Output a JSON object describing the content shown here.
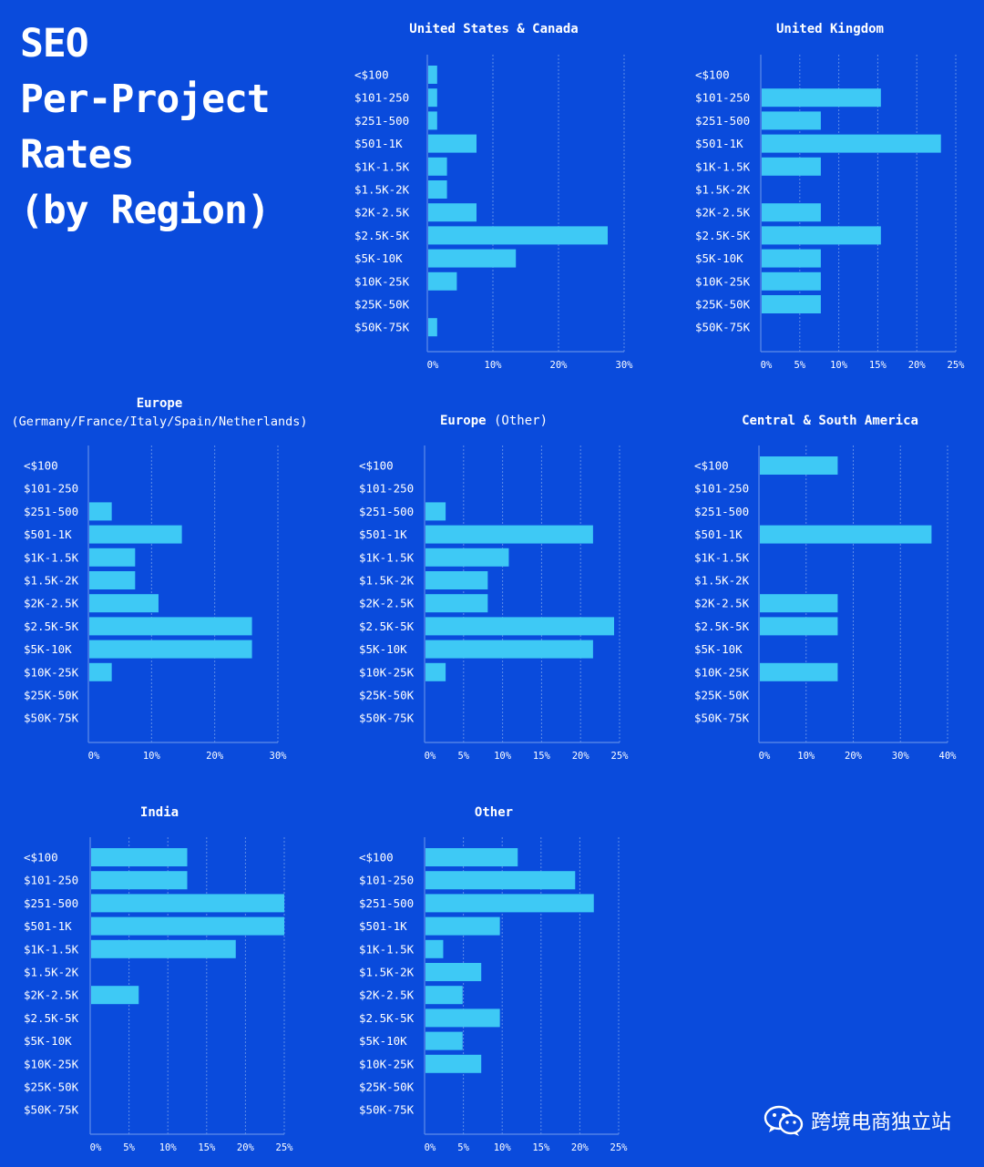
{
  "page_title": [
    "SEO",
    "Per-Project",
    "Rates",
    "(by Region)"
  ],
  "watermark_text": "跨境电商独立站",
  "colors": {
    "background": "#0a4bdc",
    "bar": "#3ec9f5",
    "grid": "#5f8ce8"
  },
  "chart_data": [
    {
      "type": "bar",
      "orientation": "horizontal",
      "title": "United States & Canada",
      "categories": [
        "<$100",
        "$101-250",
        "$251-500",
        "$501-1K",
        "$1K-1.5K",
        "$1.5K-2K",
        "$2K-2.5K",
        "$2.5K-5K",
        "$5K-10K",
        "$10K-25K",
        "$25K-50K",
        "$50K-75K"
      ],
      "values": [
        1.5,
        1.5,
        1.5,
        7.5,
        3,
        3,
        7.5,
        27.5,
        13.5,
        4.5,
        0,
        1.5
      ],
      "ticks": [
        0,
        10,
        20,
        30
      ],
      "tick_labels": [
        "0%",
        "10%",
        "20%",
        "30%"
      ],
      "xlim": [
        0,
        30
      ]
    },
    {
      "type": "bar",
      "orientation": "horizontal",
      "title": "United Kingdom",
      "categories": [
        "<$100",
        "$101-250",
        "$251-500",
        "$501-1K",
        "$1K-1.5K",
        "$1.5K-2K",
        "$2K-2.5K",
        "$2.5K-5K",
        "$5K-10K",
        "$10K-25K",
        "$25K-50K",
        "$50K-75K"
      ],
      "values": [
        0,
        15.4,
        7.7,
        23.1,
        7.7,
        0,
        7.7,
        15.4,
        7.7,
        7.7,
        7.7,
        0
      ],
      "ticks": [
        0,
        5,
        10,
        15,
        20,
        25
      ],
      "tick_labels": [
        "0%",
        "5%",
        "10%",
        "15%",
        "20%",
        "25%"
      ],
      "xlim": [
        0,
        25
      ]
    },
    {
      "type": "bar",
      "orientation": "horizontal",
      "title": "Europe",
      "subtitle": "(Germany/France/Italy/Spain/Netherlands)",
      "categories": [
        "<$100",
        "$101-250",
        "$251-500",
        "$501-1K",
        "$1K-1.5K",
        "$1.5K-2K",
        "$2K-2.5K",
        "$2.5K-5K",
        "$5K-10K",
        "$10K-25K",
        "$25K-50K",
        "$50K-75K"
      ],
      "values": [
        0,
        0,
        3.7,
        14.8,
        7.4,
        7.4,
        11.1,
        25.9,
        25.9,
        3.7,
        0,
        0
      ],
      "ticks": [
        0,
        10,
        20,
        30
      ],
      "tick_labels": [
        "0%",
        "10%",
        "20%",
        "30%"
      ],
      "xlim": [
        0,
        30
      ]
    },
    {
      "type": "bar",
      "orientation": "horizontal",
      "title": "Europe",
      "title_suffix": "(Other)",
      "categories": [
        "<$100",
        "$101-250",
        "$251-500",
        "$501-1K",
        "$1K-1.5K",
        "$1.5K-2K",
        "$2K-2.5K",
        "$2.5K-5K",
        "$5K-10K",
        "$10K-25K",
        "$25K-50K",
        "$50K-75K"
      ],
      "values": [
        0,
        0,
        2.7,
        21.6,
        10.8,
        8.1,
        8.1,
        24.3,
        21.6,
        2.7,
        0,
        0
      ],
      "ticks": [
        0,
        5,
        10,
        15,
        20,
        25
      ],
      "tick_labels": [
        "0%",
        "5%",
        "10%",
        "15%",
        "20%",
        "25%"
      ],
      "xlim": [
        0,
        25
      ]
    },
    {
      "type": "bar",
      "orientation": "horizontal",
      "title": "Central & South America",
      "categories": [
        "<$100",
        "$101-250",
        "$251-500",
        "$501-1K",
        "$1K-1.5K",
        "$1.5K-2K",
        "$2K-2.5K",
        "$2.5K-5K",
        "$5K-10K",
        "$10K-25K",
        "$25K-50K",
        "$50K-75K"
      ],
      "values": [
        16.7,
        0,
        0,
        36.6,
        0,
        0,
        16.7,
        16.7,
        0,
        16.7,
        0,
        0
      ],
      "ticks": [
        0,
        10,
        20,
        30,
        40
      ],
      "tick_labels": [
        "0%",
        "10%",
        "20%",
        "30%",
        "40%"
      ],
      "xlim": [
        0,
        40
      ]
    },
    {
      "type": "bar",
      "orientation": "horizontal",
      "title": "India",
      "categories": [
        "<$100",
        "$101-250",
        "$251-500",
        "$501-1K",
        "$1K-1.5K",
        "$1.5K-2K",
        "$2K-2.5K",
        "$2.5K-5K",
        "$5K-10K",
        "$10K-25K",
        "$25K-50K",
        "$50K-75K"
      ],
      "values": [
        12.5,
        12.5,
        25,
        25,
        18.75,
        0,
        6.25,
        0,
        0,
        0,
        0,
        0
      ],
      "ticks": [
        0,
        5,
        10,
        15,
        20,
        25
      ],
      "tick_labels": [
        "0%",
        "5%",
        "10%",
        "15%",
        "20%",
        "25%"
      ],
      "xlim": [
        0,
        25
      ]
    },
    {
      "type": "bar",
      "orientation": "horizontal",
      "title": "Other",
      "categories": [
        "<$100",
        "$101-250",
        "$251-500",
        "$501-1K",
        "$1K-1.5K",
        "$1.5K-2K",
        "$2K-2.5K",
        "$2.5K-5K",
        "$5K-10K",
        "$10K-25K",
        "$25K-50K",
        "$50K-75K"
      ],
      "values": [
        12,
        19.4,
        21.8,
        9.7,
        2.4,
        7.3,
        4.9,
        9.7,
        4.9,
        7.3,
        0,
        0
      ],
      "ticks": [
        0,
        5,
        10,
        15,
        20,
        25
      ],
      "tick_labels": [
        "0%",
        "5%",
        "10%",
        "15%",
        "20%",
        "25%"
      ],
      "xlim": [
        0,
        25
      ]
    }
  ]
}
